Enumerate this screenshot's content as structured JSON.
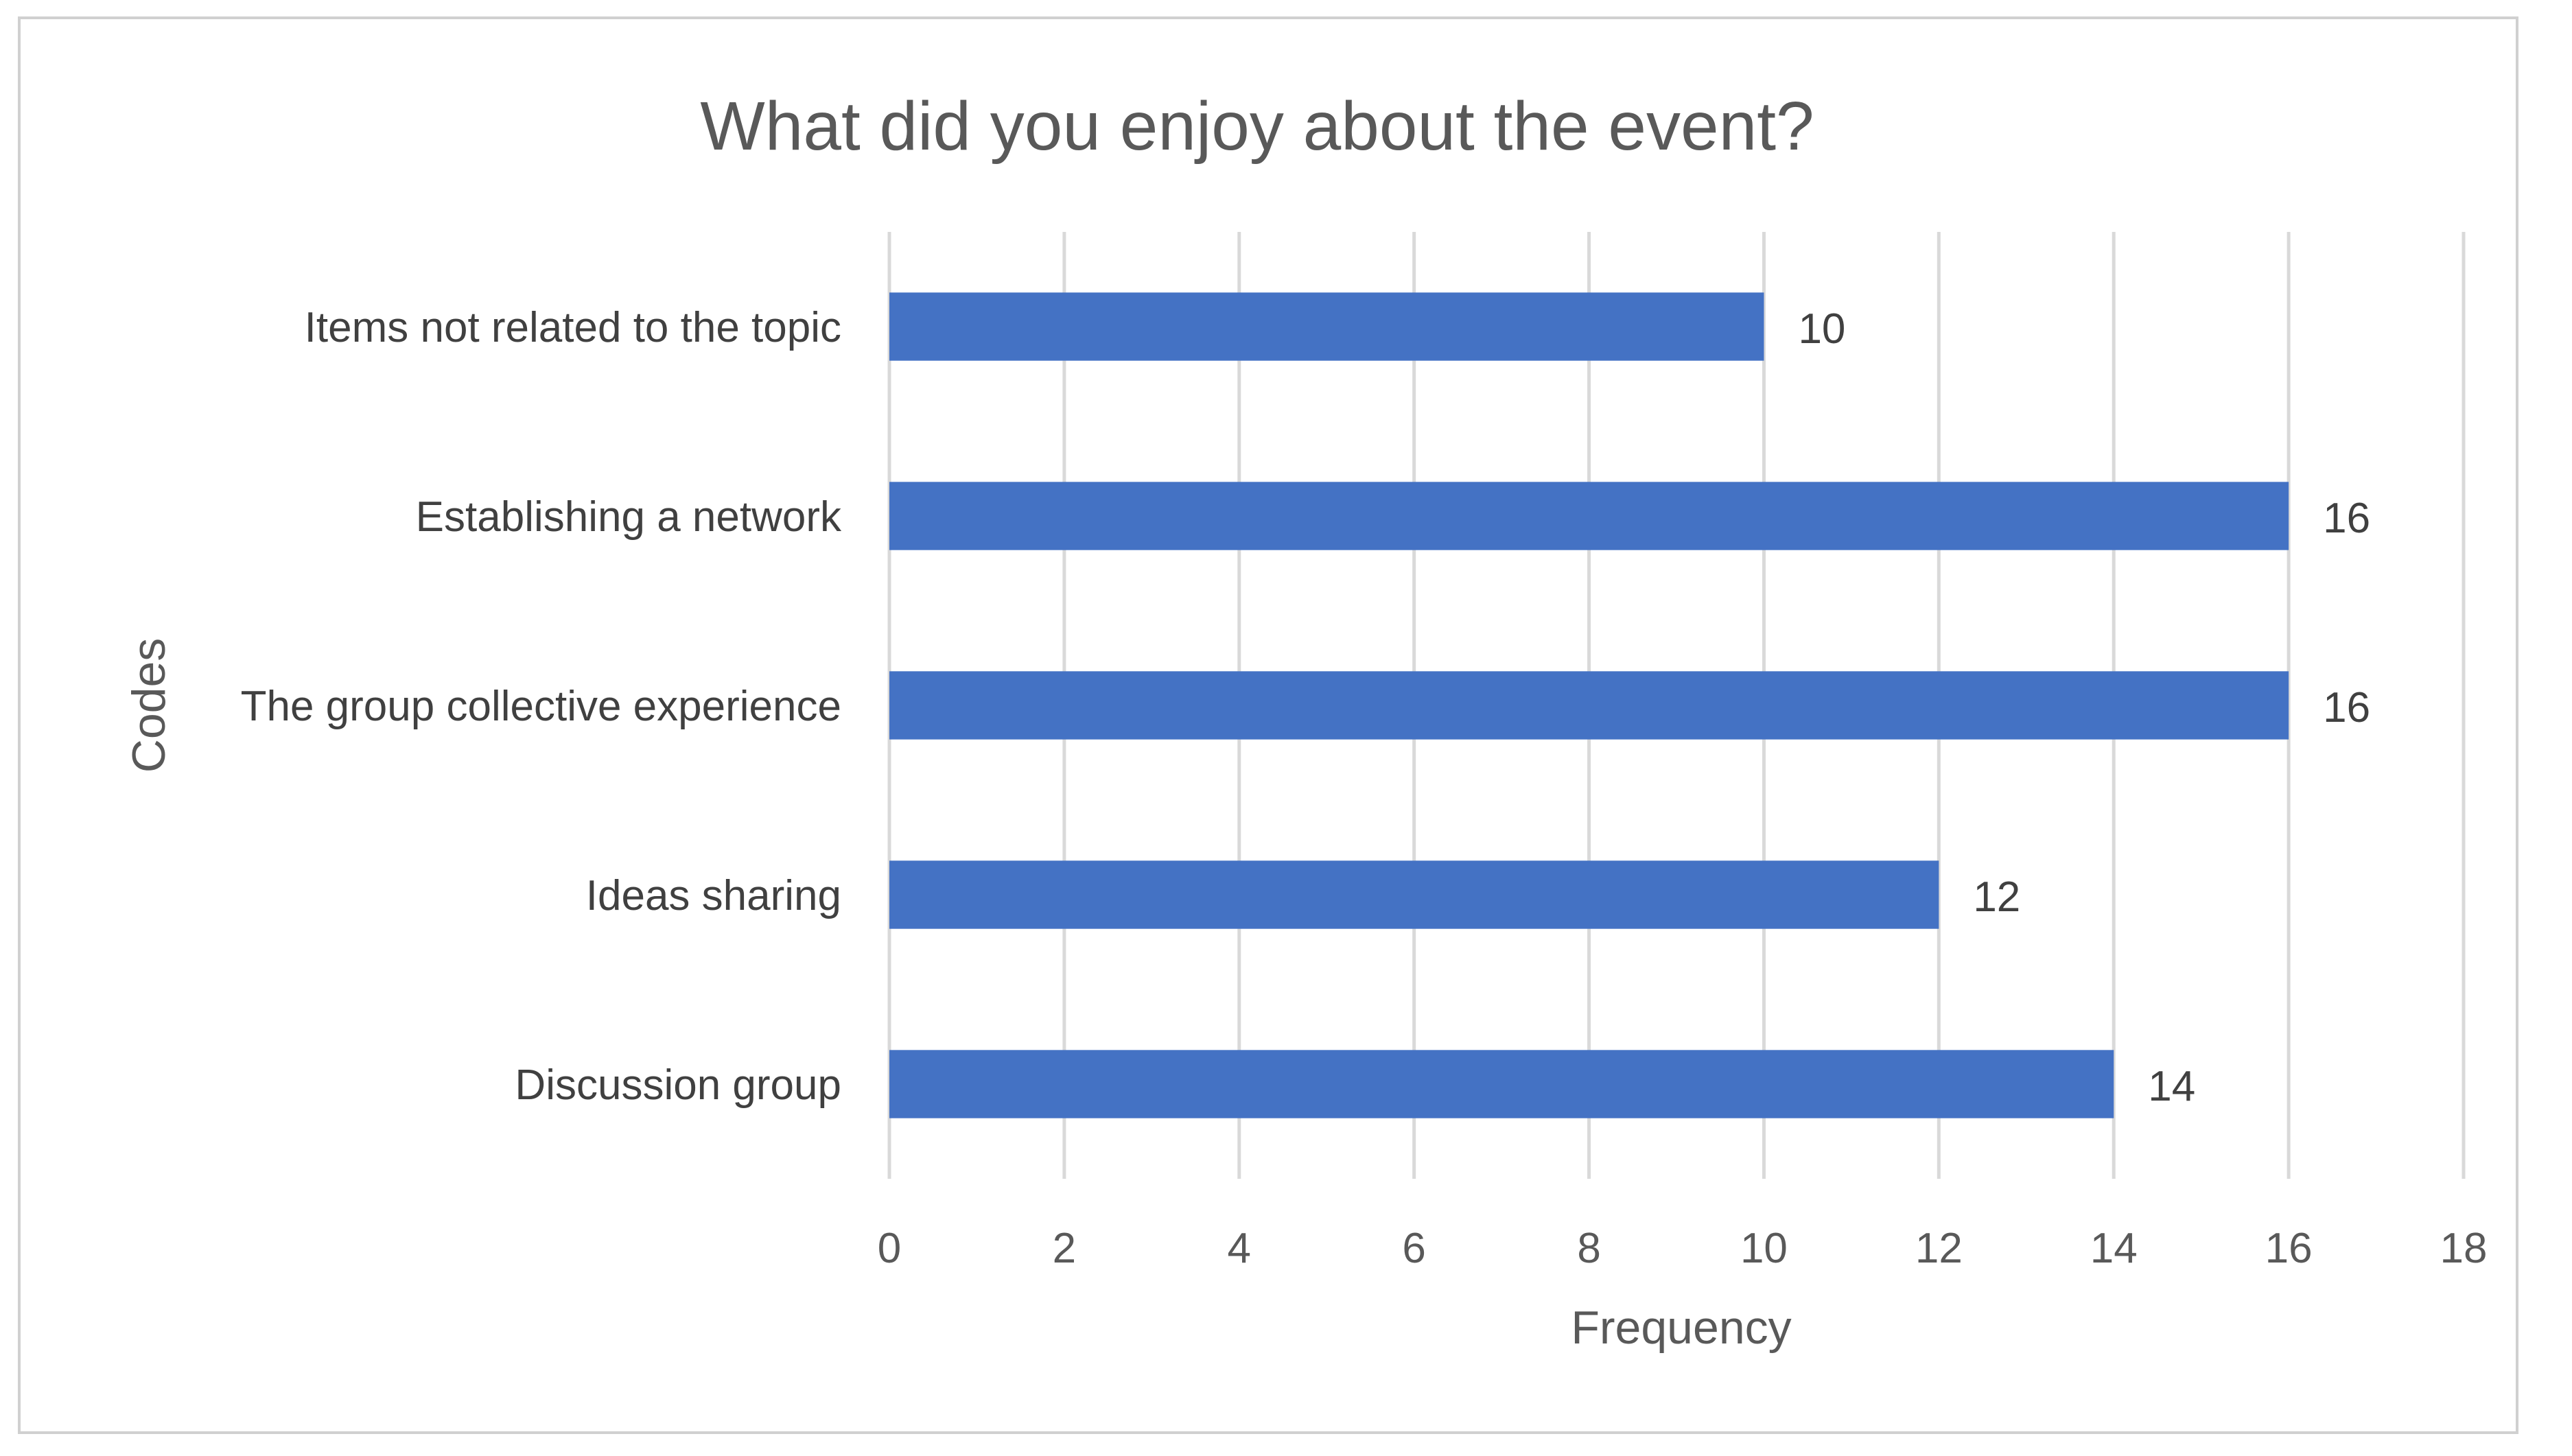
{
  "chart_data": {
    "type": "bar",
    "orientation": "horizontal",
    "title": "What did you enjoy about the event?",
    "xlabel": "Frequency",
    "ylabel": "Codes",
    "categories": [
      "Items not related to the topic",
      "Establishing a network",
      "The group collective experience",
      "Ideas sharing",
      "Discussion group"
    ],
    "values": [
      10,
      16,
      16,
      12,
      14
    ],
    "xlim": [
      0,
      18
    ],
    "xticks": [
      "0",
      "2",
      "4",
      "6",
      "8",
      "10",
      "12",
      "14",
      "16",
      "18"
    ],
    "grid": "vertical",
    "data_labels": true,
    "colors": {
      "bar": "#4472c4",
      "grid": "#d9d9d9",
      "text": "#595959"
    }
  }
}
